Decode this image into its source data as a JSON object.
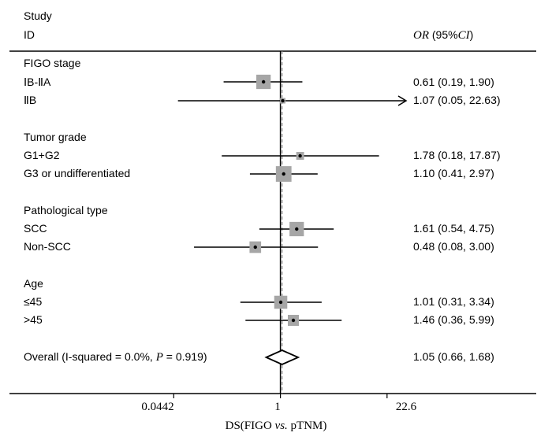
{
  "chart_data": {
    "type": "forest",
    "scale": "log",
    "header": {
      "col1_line1": "Study",
      "col1_line2": "ID",
      "or_label": "OR",
      "ci_label": " (95%",
      "ci_label_end": "CI",
      "paren_close": ")"
    },
    "xlabel": {
      "pre": "DS(FIGO ",
      "vs": "vs.",
      "post": " pTNM)"
    },
    "xlim": [
      0.011,
      125
    ],
    "xticks": [
      {
        "value": 0.0442,
        "label": "0.0442"
      },
      {
        "value": 1,
        "label": "1"
      },
      {
        "value": 22.6,
        "label": "22.6"
      }
    ],
    "null_line": 1,
    "overall_line": 1.05,
    "groups": [
      {
        "label": "FIGO stage",
        "studies": [
          {
            "label": "ⅠB-ⅡA",
            "or": 0.61,
            "lo": 0.19,
            "hi": 1.9,
            "text": "0.61 (0.19, 1.90)",
            "weight": 1.7,
            "arrow_right": false
          },
          {
            "label": "ⅡB",
            "or": 1.07,
            "lo": 0.05,
            "hi": 22.63,
            "text": "1.07 (0.05, 22.63)",
            "weight": 0.25,
            "arrow_right": true
          }
        ]
      },
      {
        "label": "Tumor grade",
        "studies": [
          {
            "label": "G1+G2",
            "or": 1.78,
            "lo": 0.18,
            "hi": 17.87,
            "text": "1.78 (0.18, 17.87)",
            "weight": 0.5,
            "arrow_right": false
          },
          {
            "label": "G3 or undifferentiated",
            "or": 1.1,
            "lo": 0.41,
            "hi": 2.97,
            "text": "1.10 (0.41, 2.97)",
            "weight": 2.0,
            "arrow_right": false
          }
        ]
      },
      {
        "label": "Pathological type",
        "studies": [
          {
            "label": "SCC",
            "or": 1.61,
            "lo": 0.54,
            "hi": 4.75,
            "text": "1.61 (0.54, 4.75)",
            "weight": 1.7,
            "arrow_right": false
          },
          {
            "label": "Non-SCC",
            "or": 0.48,
            "lo": 0.08,
            "hi": 3.0,
            "text": "0.48 (0.08, 3.00)",
            "weight": 1.1,
            "arrow_right": false
          }
        ]
      },
      {
        "label": "Age",
        "studies": [
          {
            "label": "≤45",
            "or": 1.01,
            "lo": 0.31,
            "hi": 3.34,
            "text": "1.01 (0.31, 3.34)",
            "weight": 1.4,
            "arrow_right": false
          },
          {
            "label": ">45",
            "or": 1.46,
            "lo": 0.36,
            "hi": 5.99,
            "text": "1.46 (0.36, 5.99)",
            "weight": 1.0,
            "arrow_right": false
          }
        ]
      }
    ],
    "overall": {
      "label_pre": "Overall  (I-squared = 0.0%, ",
      "label_p": "P",
      "label_post": " = 0.919)",
      "or": 1.05,
      "lo": 0.66,
      "hi": 1.68,
      "text": "1.05 (0.66, 1.68)"
    },
    "colors": {
      "box": "#a6a6a6",
      "line": "#000000",
      "overall_line": "#888888"
    }
  }
}
